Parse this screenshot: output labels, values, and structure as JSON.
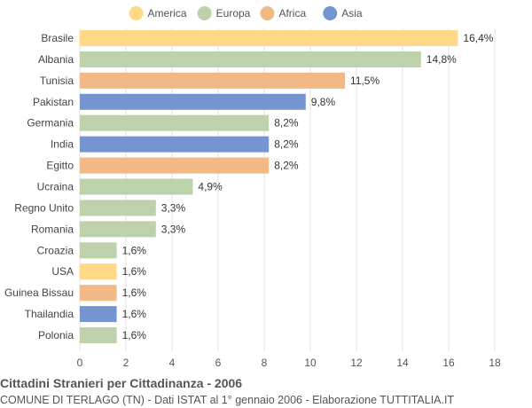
{
  "chart_data": {
    "type": "bar",
    "orientation": "horizontal",
    "title": "Cittadini Stranieri per Cittadinanza - 2006",
    "subtitle": "COMUNE DI TERLAGO (TN) - Dati ISTAT al 1° gennaio 2006 - Elaborazione TUTTITALIA.IT",
    "legend": {
      "placement": "top",
      "entries": [
        {
          "name": "America",
          "color": "#ffd888"
        },
        {
          "name": "Europa",
          "color": "#bdd1ab"
        },
        {
          "name": "Africa",
          "color": "#f0b986"
        },
        {
          "name": "Asia",
          "color": "#7595d1"
        }
      ]
    },
    "categories": [
      "Brasile",
      "Albania",
      "Tunisia",
      "Pakistan",
      "Germania",
      "India",
      "Egitto",
      "Ucraina",
      "Regno Unito",
      "Romania",
      "Croazia",
      "USA",
      "Guinea Bissau",
      "Thailandia",
      "Polonia"
    ],
    "values": [
      16.4,
      14.8,
      11.5,
      9.8,
      8.2,
      8.2,
      8.2,
      4.9,
      3.3,
      3.3,
      1.6,
      1.6,
      1.6,
      1.6,
      1.6
    ],
    "value_labels": [
      "16,4%",
      "14,8%",
      "11,5%",
      "9,8%",
      "8,2%",
      "8,2%",
      "8,2%",
      "4,9%",
      "3,3%",
      "3,3%",
      "1,6%",
      "1,6%",
      "1,6%",
      "1,6%",
      "1,6%"
    ],
    "groups": [
      "America",
      "Europa",
      "Africa",
      "Asia",
      "Europa",
      "Asia",
      "Africa",
      "Europa",
      "Europa",
      "Europa",
      "Europa",
      "America",
      "Africa",
      "Asia",
      "Europa"
    ],
    "xlim": [
      0,
      18
    ],
    "xticks": [
      0,
      2,
      4,
      6,
      8,
      10,
      12,
      14,
      16,
      18
    ],
    "xtick_labels": [
      "0",
      "2",
      "4",
      "6",
      "8",
      "10",
      "12",
      "14",
      "16",
      "18"
    ],
    "grid": true
  }
}
